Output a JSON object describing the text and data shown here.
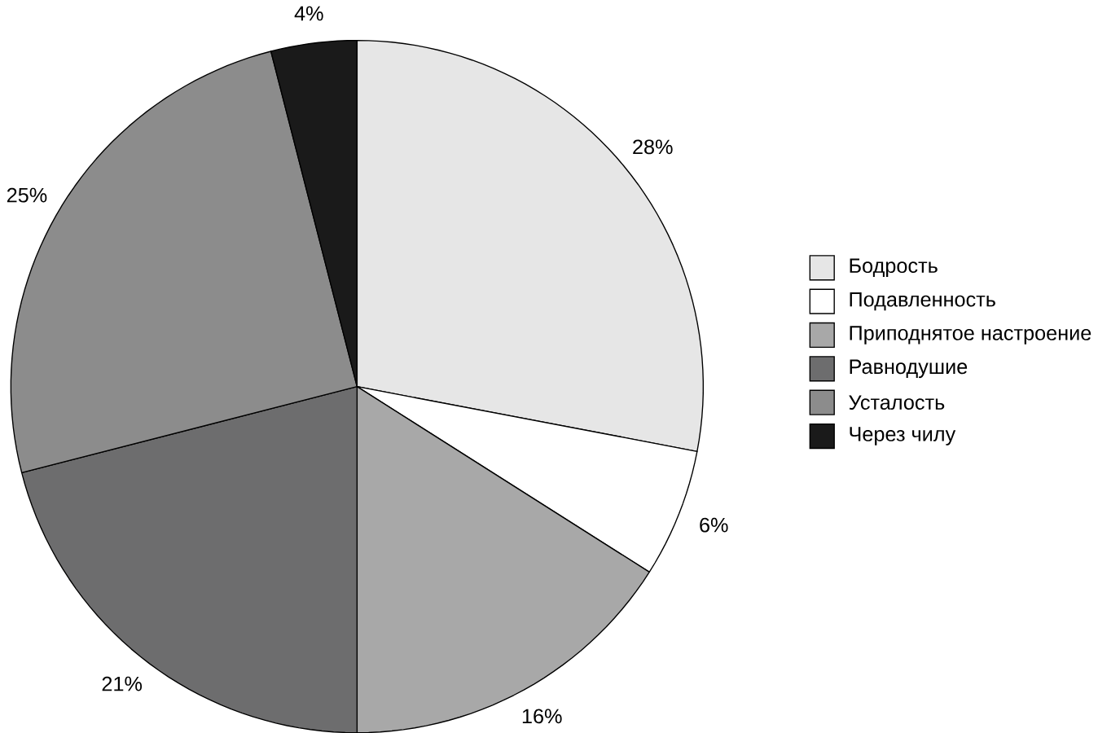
{
  "chart_data": {
    "type": "pie",
    "categories": [
      "Бодрость",
      "Подавленность",
      "Приподнятое настроение",
      "Равнодушие",
      "Усталость",
      "Через чилу"
    ],
    "values": [
      28,
      6,
      16,
      21,
      25,
      4
    ],
    "value_labels": [
      "28%",
      "6%",
      "16%",
      "21%",
      "25%",
      "4%"
    ],
    "colors": [
      "#e6e6e6",
      "#ffffff",
      "#a8a8a8",
      "#6d6d6e",
      "#8c8c8c",
      "#1a1a1a"
    ],
    "legend": "right"
  }
}
